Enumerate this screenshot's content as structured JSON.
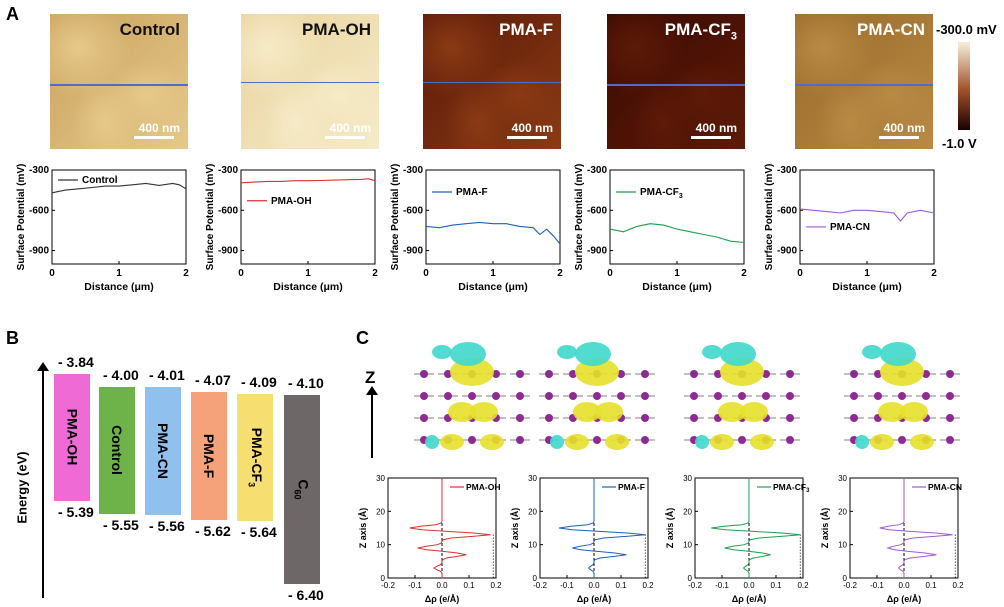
{
  "panels": {
    "a": "A",
    "b": "B",
    "c": "C"
  },
  "kpfm_maps": [
    {
      "label": "Control",
      "scale": "400 nm",
      "color_a": "#c9a15e",
      "color_b": "#e6c98a",
      "line_pos": 0.52
    },
    {
      "label": "PMA-OH",
      "scale": "400 nm",
      "color_a": "#e8d39e",
      "color_b": "#f6ebc8",
      "line_pos": 0.5
    },
    {
      "label": "PMA-F",
      "scale": "400 nm",
      "color_a": "#5a1a08",
      "color_b": "#8a3a14",
      "line_pos": 0.5
    },
    {
      "label": "PMA-CF",
      "label_sub": "3",
      "scale": "400 nm",
      "color_a": "#3a0a02",
      "color_b": "#5e1a08",
      "line_pos": 0.52
    },
    {
      "label": "PMA-CN",
      "scale": "400 nm",
      "color_a": "#9a6a2a",
      "color_b": "#b88a44",
      "line_pos": 0.52
    }
  ],
  "colorbar": {
    "top_label": "-300.0 mV",
    "bottom_label": "-1.0 V",
    "top_color": "#f7f0dc",
    "mid_color": "#a0502a",
    "bottom_color": "#1a0000"
  },
  "chart_data": [
    {
      "type": "line",
      "series": [
        {
          "name": "Control",
          "color": "#333333",
          "x": [
            0,
            0.2,
            0.4,
            0.6,
            0.8,
            1.0,
            1.2,
            1.4,
            1.6,
            1.8,
            1.9,
            2.0
          ],
          "y": [
            -470,
            -450,
            -440,
            -430,
            -420,
            -420,
            -410,
            -400,
            -415,
            -400,
            -410,
            -440
          ]
        }
      ],
      "xlabel": "Distance (μm)",
      "ylabel": "Surface Potential (mV)",
      "xlim": [
        0,
        2
      ],
      "ylim": [
        -1000,
        -300
      ],
      "xticks": [
        "0",
        "1",
        "2"
      ],
      "yticks": [
        "-300",
        "-600",
        "-900"
      ]
    },
    {
      "type": "line",
      "series": [
        {
          "name": "PMA-OH",
          "color": "#e03030",
          "x": [
            0,
            0.2,
            0.4,
            0.6,
            0.8,
            1.0,
            1.2,
            1.4,
            1.6,
            1.8,
            1.9,
            2.0
          ],
          "y": [
            -395,
            -390,
            -385,
            -385,
            -380,
            -380,
            -378,
            -375,
            -372,
            -370,
            -365,
            -380
          ]
        }
      ],
      "xlabel": "Distance (μm)",
      "ylabel": "Surface Potential (mV)",
      "xlim": [
        0,
        2
      ],
      "ylim": [
        -1000,
        -300
      ],
      "xticks": [
        "0",
        "1",
        "2"
      ],
      "yticks": [
        "-300",
        "-600",
        "-900"
      ]
    },
    {
      "type": "line",
      "series": [
        {
          "name": "PMA-F",
          "color": "#1f5fbf",
          "x": [
            0,
            0.2,
            0.4,
            0.6,
            0.8,
            1.0,
            1.2,
            1.4,
            1.6,
            1.7,
            1.8,
            1.9,
            2.0
          ],
          "y": [
            -720,
            -730,
            -710,
            -700,
            -690,
            -700,
            -700,
            -720,
            -730,
            -780,
            -740,
            -790,
            -850
          ]
        }
      ],
      "xlabel": "Distance (μm)",
      "ylabel": "Surface Potential (mV)",
      "xlim": [
        0,
        2
      ],
      "ylim": [
        -1000,
        -300
      ],
      "xticks": [
        "0",
        "1",
        "2"
      ],
      "yticks": [
        "-300",
        "-600",
        "-900"
      ]
    },
    {
      "type": "line",
      "series": [
        {
          "name": "PMA-CF",
          "name_sub": "3",
          "color": "#1f9f4f",
          "x": [
            0,
            0.2,
            0.4,
            0.6,
            0.8,
            1.0,
            1.2,
            1.4,
            1.6,
            1.8,
            2.0
          ],
          "y": [
            -740,
            -760,
            -720,
            -700,
            -710,
            -740,
            -760,
            -780,
            -800,
            -830,
            -840
          ]
        }
      ],
      "xlabel": "Distance (μm)",
      "ylabel": "Surface Potential (mV)",
      "xlim": [
        0,
        2
      ],
      "ylim": [
        -1000,
        -300
      ],
      "xticks": [
        "0",
        "1",
        "2"
      ],
      "yticks": [
        "-300",
        "-600",
        "-900"
      ]
    },
    {
      "type": "line",
      "series": [
        {
          "name": "PMA-CN",
          "color": "#a05ad8",
          "x": [
            0,
            0.2,
            0.4,
            0.6,
            0.8,
            1.0,
            1.2,
            1.4,
            1.5,
            1.6,
            1.8,
            2.0
          ],
          "y": [
            -590,
            -600,
            -610,
            -620,
            -600,
            -600,
            -610,
            -620,
            -680,
            -620,
            -600,
            -620
          ]
        }
      ],
      "xlabel": "Distance (μm)",
      "ylabel": "Surface Potential (mV)",
      "xlim": [
        0,
        2
      ],
      "ylim": [
        -1000,
        -300
      ],
      "xticks": [
        "0",
        "1",
        "2"
      ],
      "yticks": [
        "-300",
        "-600",
        "-900"
      ]
    }
  ],
  "energy_levels": {
    "ylabel": "Energy (eV)",
    "ylim": [
      -6.5,
      -3.7
    ],
    "bars": [
      {
        "label": "PMA-OH",
        "top": -3.84,
        "bottom": -5.39,
        "top_label": "- 3.84",
        "bottom_label": "- 5.39",
        "color": "#f06ad6"
      },
      {
        "label": "Control",
        "top": -4.0,
        "bottom": -5.55,
        "top_label": "- 4.00",
        "bottom_label": "- 5.55",
        "color": "#6db34a"
      },
      {
        "label": "PMA-CN",
        "top": -4.01,
        "bottom": -5.56,
        "top_label": "- 4.01",
        "bottom_label": "- 5.56",
        "color": "#8fc0ee"
      },
      {
        "label": "PMA-F",
        "top": -4.07,
        "bottom": -5.62,
        "top_label": "- 4.07",
        "bottom_label": "- 5.62",
        "color": "#f5a27a"
      },
      {
        "label": "PMA-CF",
        "label_sub": "3",
        "top": -4.09,
        "bottom": -5.64,
        "top_label": "- 4.09",
        "bottom_label": "- 5.64",
        "color": "#f7de70"
      },
      {
        "label": "C",
        "label_sub": "60",
        "top": -4.1,
        "bottom": -6.4,
        "top_label": "- 4.10",
        "bottom_label": "- 6.40",
        "color": "#6e6767"
      }
    ]
  },
  "z_axis_label": "Z",
  "charge_plots": [
    {
      "name": "PMA-OH",
      "color": "#e03030",
      "peaks": [
        [
          15,
          -0.12
        ],
        [
          13,
          0.18
        ],
        [
          9,
          -0.09
        ],
        [
          7,
          0.09
        ],
        [
          3,
          -0.03
        ]
      ]
    },
    {
      "name": "PMA-F",
      "color": "#1f5fbf",
      "peaks": [
        [
          15,
          -0.13
        ],
        [
          13,
          0.19
        ],
        [
          9,
          -0.08
        ],
        [
          7,
          0.12
        ],
        [
          3,
          -0.02
        ]
      ]
    },
    {
      "name": "PMA-CF",
      "name_sub": "3",
      "color": "#1f9f4f",
      "peaks": [
        [
          15,
          -0.14
        ],
        [
          13,
          0.19
        ],
        [
          9,
          -0.09
        ],
        [
          7,
          0.08
        ],
        [
          3,
          -0.02
        ]
      ]
    },
    {
      "name": "PMA-CN",
      "color": "#a05ad8",
      "peaks": [
        [
          15,
          -0.09
        ],
        [
          13,
          0.18
        ],
        [
          9,
          -0.06
        ],
        [
          7,
          0.12
        ],
        [
          3,
          -0.02
        ]
      ]
    }
  ],
  "charge_axes": {
    "xlabel": "Δρ (e/Å)",
    "ylabel": "Z axis (Å)",
    "xticks": [
      "-0.2",
      "-0.1",
      "0.0",
      "0.1",
      "0.2"
    ],
    "yticks": [
      "0",
      "10",
      "20",
      "30"
    ],
    "xlim": [
      -0.2,
      0.2
    ],
    "ylim": [
      0,
      30
    ]
  }
}
